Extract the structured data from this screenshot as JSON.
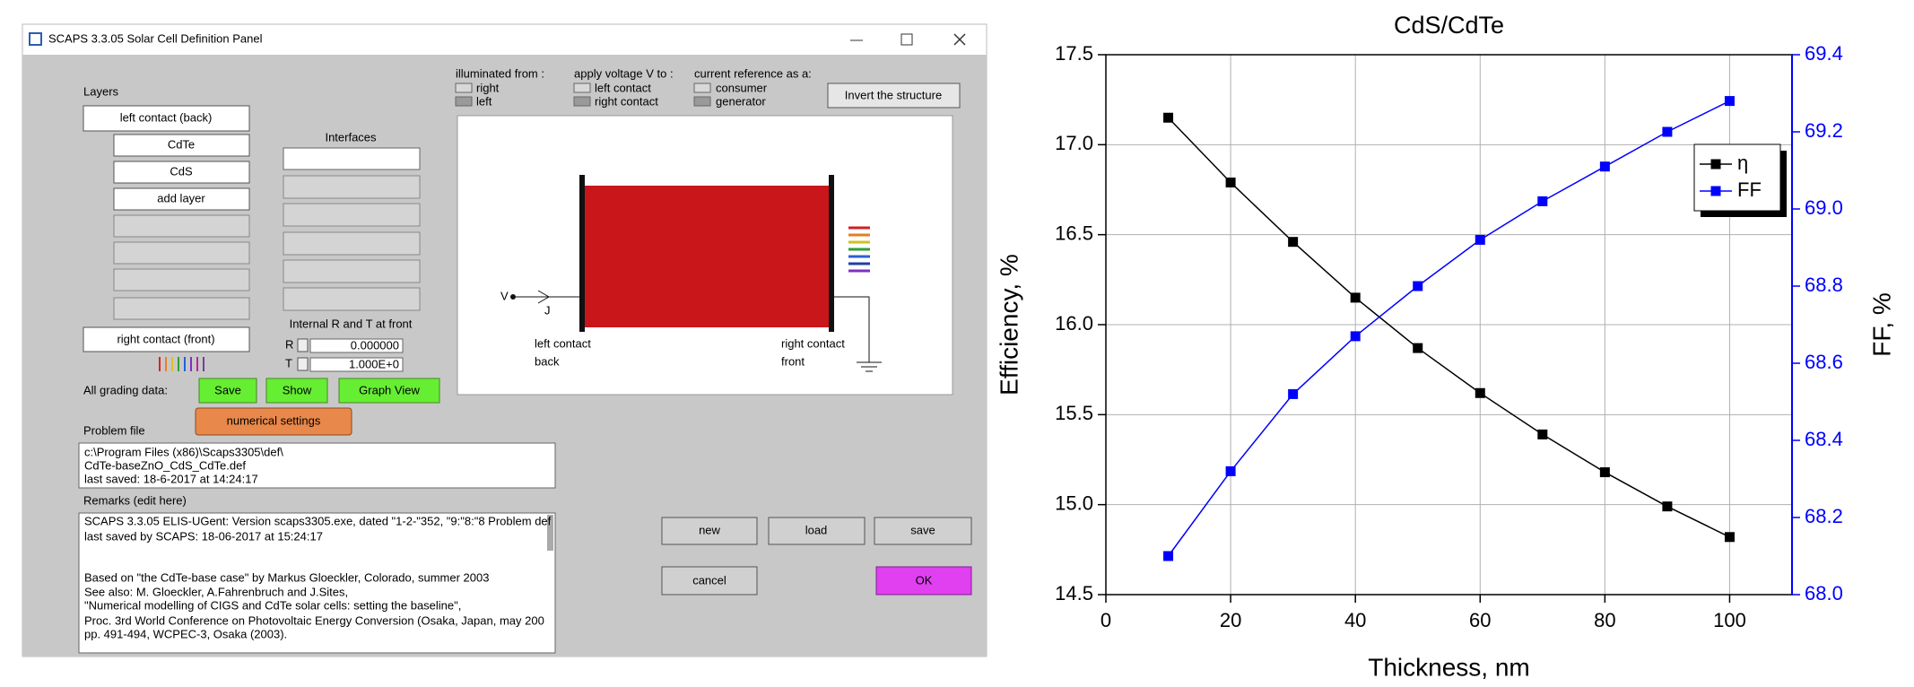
{
  "panel": {
    "window_title": "SCAPS 3.3.05 Solar Cell Definition Panel",
    "layers": {
      "heading": "Layers",
      "items": [
        "left contact (back)",
        "CdTe",
        "CdS",
        "add layer"
      ],
      "front": "right contact (front)"
    },
    "interfaces": {
      "heading": "Interfaces"
    },
    "illumination": {
      "heading": "illuminated from :",
      "options": [
        "right",
        "left"
      ]
    },
    "voltage": {
      "heading": "apply voltage V to :",
      "options": [
        "left contact",
        "right contact"
      ]
    },
    "current_reference": {
      "heading": "current reference as a:",
      "options": [
        "consumer",
        "generator"
      ]
    },
    "invert_button": "Invert the structure",
    "diagram": {
      "v": "V",
      "j": "J",
      "left": [
        "left contact",
        "back"
      ],
      "right": [
        "right contact",
        "front"
      ]
    },
    "internal": {
      "heading": "Internal R and T at front",
      "r_label": "R",
      "r_value": "0.000000",
      "t_label": "T",
      "t_value": "1.000E+0"
    },
    "grading": {
      "label": "All grading data:",
      "buttons": [
        "Save",
        "Show",
        "Graph View"
      ]
    },
    "numerical_settings": "numerical settings",
    "problem_file": {
      "heading": "Problem file",
      "lines": [
        "c:\\Program Files (x86)\\Scaps3305\\def\\",
        "CdTe-baseZnO_CdS_CdTe.def",
        "last saved: 18-6-2017 at 14:24:17"
      ]
    },
    "remarks": {
      "heading": "Remarks (edit here)",
      "lines": [
        "SCAPS 3.3.05 ELIS-UGent: Version scaps3305.exe, dated \"1-2-\"352, \"9:\"8:\"8 Problem def",
        "last saved by SCAPS: 18-06-2017 at 15:24:17",
        "Based on \"the CdTe-base case\" by Markus Gloeckler, Colorado, summer 2003",
        "See also: M. Gloeckler, A.Fahrenbruch and J.Sites,",
        "\"Numerical modelling of CIGS and CdTe solar cells: setting the baseline\",",
        "Proc. 3rd World Conference on Photovoltaic Energy Conversion (Osaka, Japan, may 200",
        "pp. 491-494, WCPEC-3, Osaka (2003)."
      ]
    },
    "buttons": {
      "new": "new",
      "load": "load",
      "save": "save",
      "cancel": "cancel",
      "ok": "OK"
    }
  },
  "chart_data": {
    "type": "line",
    "title": "CdS/CdTe",
    "x_label": "Thickness, nm",
    "y_label": "Efficiency, %",
    "y2_label": "FF, %",
    "x": [
      10,
      20,
      30,
      40,
      50,
      60,
      70,
      80,
      90,
      100
    ],
    "series": [
      {
        "name": "η",
        "color": "#000000",
        "values": [
          17.15,
          16.79,
          16.46,
          16.15,
          15.87,
          15.62,
          15.39,
          15.18,
          14.99,
          14.82
        ]
      },
      {
        "name": "FF",
        "color": "#0000ff",
        "axis": "y2",
        "values": [
          68.1,
          68.32,
          68.52,
          68.67,
          68.8,
          68.92,
          69.02,
          69.11,
          69.2,
          69.28
        ]
      }
    ],
    "xlim": [
      0,
      110
    ],
    "xticks": [
      0,
      20,
      40,
      60,
      80,
      100
    ],
    "ylim": [
      14.5,
      17.5
    ],
    "yticks": [
      14.5,
      {
        "value": 15,
        "label": "15.0"
      },
      15.5,
      {
        "value": 16,
        "label": "16.0"
      },
      16.5,
      {
        "value": 17,
        "label": "17.0"
      },
      17.5
    ],
    "y2lim": [
      68.0,
      69.4
    ],
    "y2ticks": [
      {
        "value": 68,
        "label": "68.0"
      },
      68.2,
      68.4,
      68.6,
      68.8,
      {
        "value": 69,
        "label": "69.0"
      },
      69.2,
      69.4
    ],
    "grid": true,
    "legend": "upper right"
  }
}
